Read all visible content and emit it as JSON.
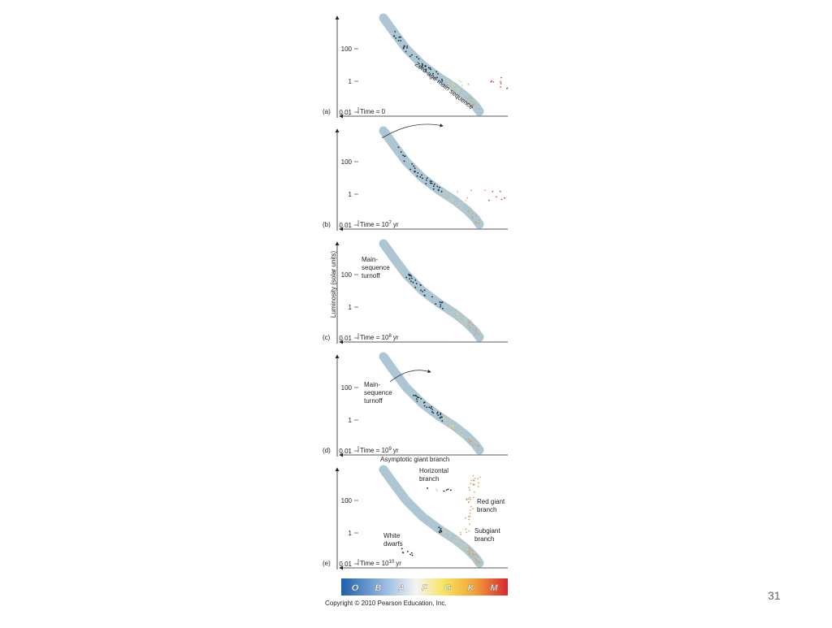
{
  "figure": {
    "y_label": "Luminosity (solar units)",
    "yticks": [
      "100",
      "1",
      "0.01"
    ],
    "panels": [
      {
        "label": "(a)",
        "time": "Time = 0",
        "annotations": [
          {
            "lines": [
              "Zero-age main sequence"
            ]
          }
        ]
      },
      {
        "label": "(b)",
        "time": "Time = 10",
        "exponent": "7",
        "unit": "yr"
      },
      {
        "label": "(c)",
        "time": "Time = 10",
        "exponent": "8",
        "unit": "yr",
        "annotations": [
          {
            "lines": [
              "Main-",
              "sequence",
              "turnoff"
            ]
          }
        ]
      },
      {
        "label": "(d)",
        "time": "Time = 10",
        "exponent": "9",
        "unit": "yr",
        "annotations": [
          {
            "lines": [
              "Main-",
              "sequence",
              "turnoff"
            ]
          }
        ]
      },
      {
        "label": "(e)",
        "time": "Time = 10",
        "exponent": "10",
        "unit": "yr",
        "annotations": [
          {
            "lines": [
              "Asymptotic giant branch"
            ]
          },
          {
            "lines": [
              "Horizontal",
              "branch"
            ]
          },
          {
            "lines": [
              "Red giant",
              "branch"
            ]
          },
          {
            "lines": [
              "Subgiant",
              "branch"
            ]
          },
          {
            "lines": [
              "White",
              "dwarfs"
            ]
          }
        ]
      }
    ],
    "spectral_classes": [
      "O",
      "B",
      "A",
      "F",
      "G",
      "K",
      "M"
    ],
    "copyright": "Copyright © 2010 Pearson Education, Inc."
  },
  "page_number": "31"
}
